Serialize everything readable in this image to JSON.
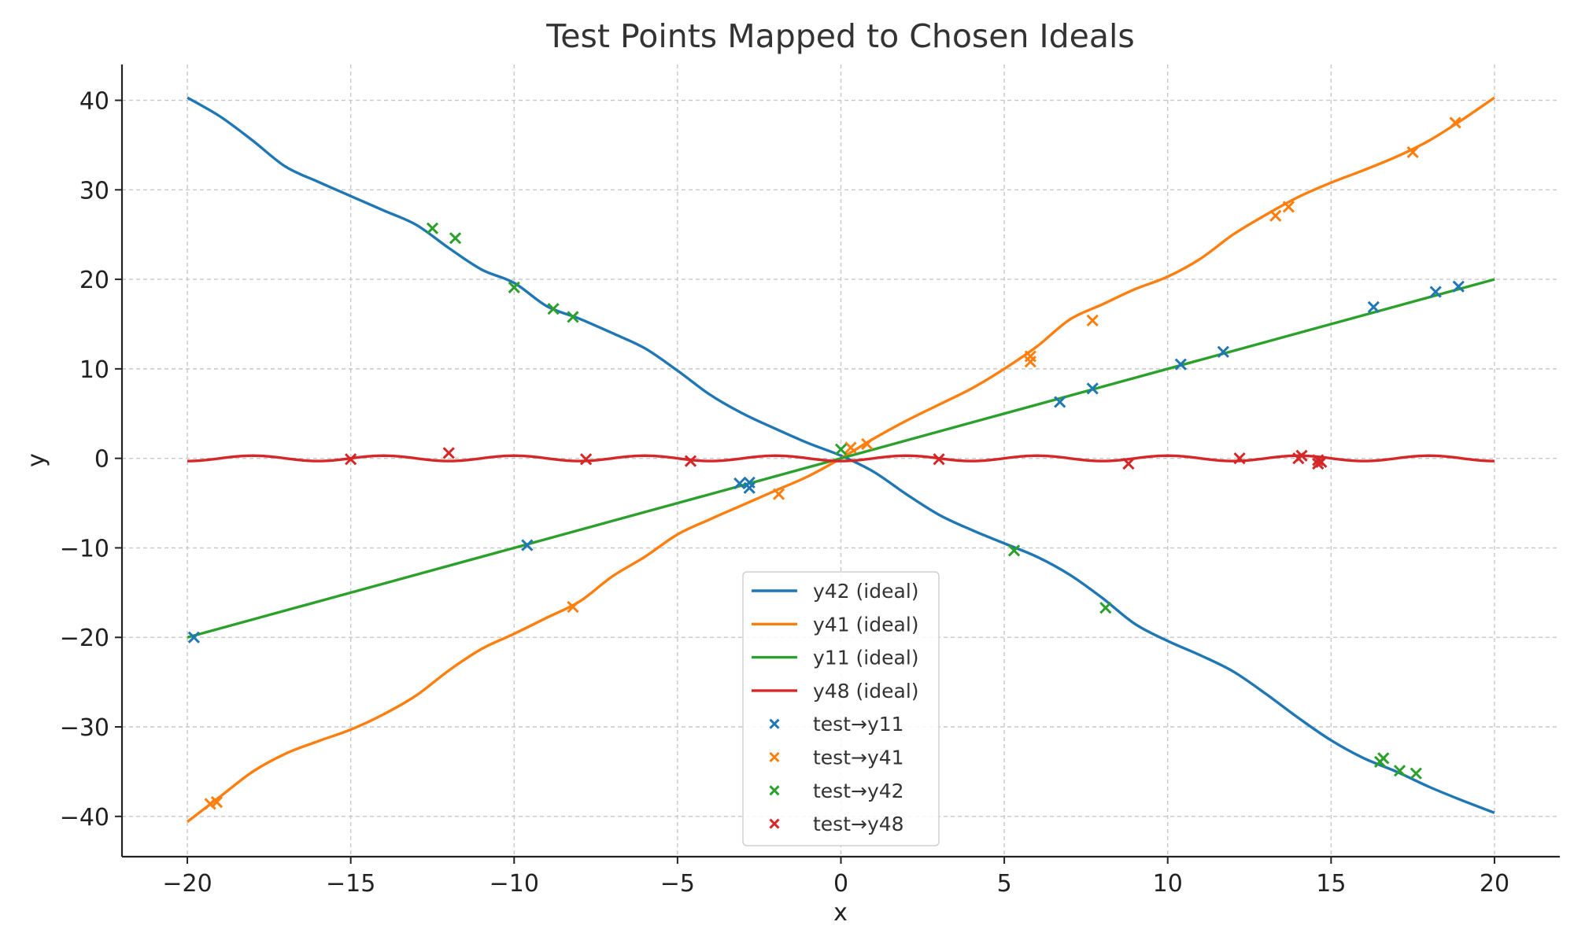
{
  "chart_data": {
    "type": "line",
    "title": "Test Points Mapped to Chosen Ideals",
    "xlabel": "x",
    "ylabel": "y",
    "xlim": [
      -22,
      22
    ],
    "ylim": [
      -44.5,
      44
    ],
    "xticks": [
      -20,
      -15,
      -10,
      -5,
      0,
      5,
      10,
      15,
      20
    ],
    "yticks": [
      40,
      30,
      20,
      10,
      0,
      -10,
      -20,
      -30,
      -40
    ],
    "xtick_labels": [
      "−20",
      "−15",
      "−10",
      "−5",
      "0",
      "5",
      "10",
      "15",
      "20"
    ],
    "ytick_labels": [
      "40",
      "30",
      "20",
      "10",
      "0",
      "−10",
      "−20",
      "−30",
      "−40"
    ],
    "grid": true,
    "legend_position": "lower-center",
    "series": [
      {
        "name": "y42 (ideal)",
        "kind": "line",
        "color": "#1f77b4",
        "x": [
          -20,
          -19,
          -18,
          -17,
          -16,
          -15,
          -14,
          -13,
          -12,
          -11,
          -10,
          -9,
          -8,
          -7,
          -6,
          -5,
          -4,
          -3,
          -2,
          -1,
          0,
          1,
          2,
          3,
          4,
          5,
          6,
          7,
          8,
          9,
          10,
          11,
          12,
          13,
          14,
          15,
          16,
          17,
          18,
          19,
          20
        ],
        "y": [
          40.3,
          38.2,
          35.5,
          32.6,
          30.9,
          29.3,
          27.7,
          26.1,
          23.5,
          21.1,
          19.6,
          17.0,
          15.6,
          14.0,
          12.3,
          9.8,
          7.1,
          5.0,
          3.3,
          1.7,
          0.3,
          -1.5,
          -4.0,
          -6.3,
          -8.0,
          -9.5,
          -11.0,
          -13.0,
          -15.6,
          -18.5,
          -20.4,
          -22.0,
          -23.8,
          -26.3,
          -29.0,
          -31.5,
          -33.5,
          -35.0,
          -36.7,
          -38.2,
          -39.6
        ]
      },
      {
        "name": "y41 (ideal)",
        "kind": "line",
        "color": "#ff7f0e",
        "x": [
          -20,
          -19,
          -18,
          -17,
          -16,
          -15,
          -14,
          -13,
          -12,
          -11,
          -10,
          -9,
          -8,
          -7,
          -6,
          -5,
          -4,
          -3,
          -2,
          -1,
          0,
          1,
          2,
          3,
          4,
          5,
          6,
          7,
          8,
          9,
          10,
          11,
          12,
          13,
          14,
          15,
          16,
          17,
          18,
          19,
          20
        ],
        "y": [
          -40.6,
          -37.8,
          -35.0,
          -33.0,
          -31.6,
          -30.3,
          -28.6,
          -26.5,
          -23.7,
          -21.3,
          -19.6,
          -17.8,
          -16.0,
          -13.2,
          -11.0,
          -8.5,
          -6.8,
          -5.2,
          -3.6,
          -2.0,
          0,
          2.2,
          4.2,
          6.0,
          7.8,
          10.0,
          12.5,
          15.5,
          17.2,
          18.9,
          20.3,
          22.3,
          25.0,
          27.2,
          29.2,
          30.8,
          32.2,
          33.7,
          35.5,
          37.8,
          40.3
        ]
      },
      {
        "name": "y11 (ideal)",
        "kind": "line",
        "color": "#2ca02c",
        "x": [
          -20,
          20
        ],
        "y": [
          -20,
          20
        ]
      },
      {
        "name": "y48 (ideal)",
        "kind": "wave",
        "color": "#d62728",
        "x_start": -20,
        "x_end": 20,
        "amplitude": 0.3,
        "period": 4.0
      },
      {
        "name": "test→y11",
        "kind": "points",
        "color": "#1f77b4",
        "points": [
          [
            -19.8,
            -20.0
          ],
          [
            -3.1,
            -2.8
          ],
          [
            -2.8,
            -2.7
          ],
          [
            -2.8,
            -3.3
          ],
          [
            -9.6,
            -9.7
          ],
          [
            6.7,
            6.3
          ],
          [
            7.7,
            7.8
          ],
          [
            10.4,
            10.5
          ],
          [
            11.7,
            11.9
          ],
          [
            16.3,
            16.9
          ],
          [
            18.2,
            18.6
          ],
          [
            18.9,
            19.2
          ]
        ]
      },
      {
        "name": "test→y41",
        "kind": "points",
        "color": "#ff7f0e",
        "points": [
          [
            -19.3,
            -38.6
          ],
          [
            -19.1,
            -38.4
          ],
          [
            -8.2,
            -16.6
          ],
          [
            -1.9,
            -4.0
          ],
          [
            0.3,
            1.2
          ],
          [
            0.8,
            1.6
          ],
          [
            5.8,
            11.4
          ],
          [
            5.8,
            10.8
          ],
          [
            7.7,
            15.4
          ],
          [
            13.3,
            27.1
          ],
          [
            13.7,
            28.1
          ],
          [
            17.5,
            34.2
          ],
          [
            18.8,
            37.5
          ]
        ]
      },
      {
        "name": "test→y42",
        "kind": "points",
        "color": "#2ca02c",
        "points": [
          [
            -12.5,
            25.7
          ],
          [
            -11.8,
            24.6
          ],
          [
            -10.0,
            19.1
          ],
          [
            -8.8,
            16.7
          ],
          [
            -8.2,
            15.8
          ],
          [
            0.0,
            1.0
          ],
          [
            5.3,
            -10.3
          ],
          [
            8.1,
            -16.7
          ],
          [
            16.5,
            -33.9
          ],
          [
            16.6,
            -33.5
          ],
          [
            17.1,
            -34.9
          ],
          [
            17.6,
            -35.2
          ]
        ]
      },
      {
        "name": "test→y48",
        "kind": "points",
        "color": "#d62728",
        "points": [
          [
            -15.0,
            -0.1
          ],
          [
            -12.0,
            0.6
          ],
          [
            -7.8,
            -0.1
          ],
          [
            -4.6,
            -0.3
          ],
          [
            3.0,
            -0.1
          ],
          [
            8.8,
            -0.6
          ],
          [
            12.2,
            0.0
          ],
          [
            14.0,
            0.0
          ],
          [
            14.1,
            0.3
          ],
          [
            14.6,
            -0.2
          ],
          [
            14.6,
            -0.6
          ],
          [
            14.7,
            -0.4
          ]
        ]
      }
    ]
  }
}
